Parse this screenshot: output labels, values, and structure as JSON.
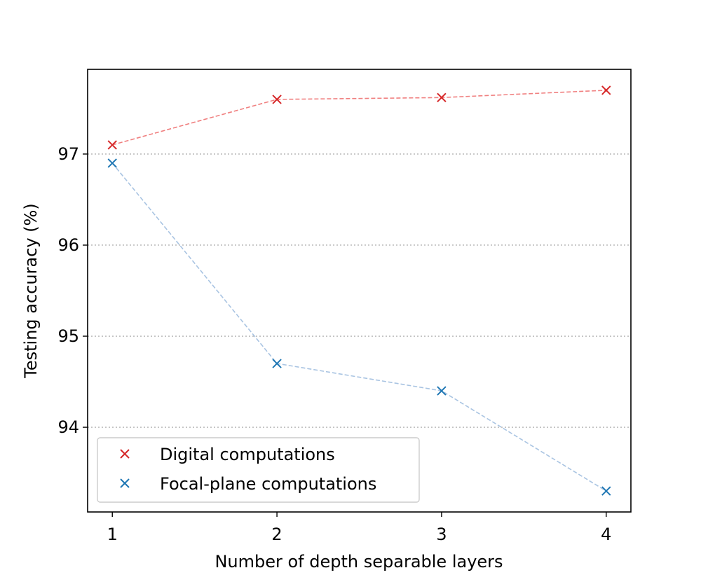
{
  "chart_data": {
    "type": "line",
    "x": [
      1,
      2,
      3,
      4
    ],
    "xlabel": "Number of depth separable layers",
    "ylabel": "Testing accuracy (%)",
    "xlim": [
      0.85,
      4.15
    ],
    "ylim": [
      93.07,
      97.93
    ],
    "xticks": [
      "1",
      "2",
      "3",
      "4"
    ],
    "yticks": [
      "94",
      "95",
      "96",
      "97"
    ],
    "grid": "horizontal, dotted",
    "legend_position": "lower-left",
    "series": [
      {
        "name": "Digital computations",
        "values": [
          97.1,
          97.6,
          97.62,
          97.7
        ],
        "color": "#d62728",
        "marker": "x",
        "line": "dashed"
      },
      {
        "name": "Focal-plane computations",
        "values": [
          96.9,
          94.7,
          94.4,
          93.3
        ],
        "color": "#1f77b4",
        "marker": "x",
        "line": "dashed"
      }
    ]
  }
}
